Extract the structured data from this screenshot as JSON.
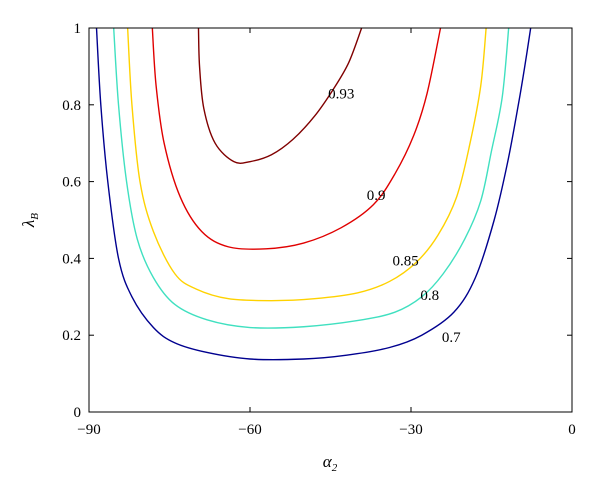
{
  "chart_data": {
    "type": "line",
    "subtype": "contour",
    "title": "",
    "xlabel": {
      "main": "α",
      "sub": "2"
    },
    "ylabel": {
      "main": "λ",
      "sub": "B"
    },
    "xlim": [
      -90,
      0
    ],
    "ylim": [
      0,
      1
    ],
    "x_ticks": [
      -90,
      -60,
      -30,
      0
    ],
    "y_ticks": [
      0,
      0.2,
      0.4,
      0.6,
      0.8,
      1
    ],
    "x_tick_labels": [
      "−90",
      "−60",
      "−30",
      "0"
    ],
    "y_tick_labels": [
      "0",
      "0.2",
      "0.4",
      "0.6",
      "0.8",
      "1"
    ],
    "grid": false,
    "series": [
      {
        "level": "0.7",
        "color": "#00008f",
        "points": [
          [
            -88.6,
            1.0
          ],
          [
            -87.8,
            0.8
          ],
          [
            -86.5,
            0.6
          ],
          [
            -84.5,
            0.4
          ],
          [
            -82,
            0.3
          ],
          [
            -78,
            0.22
          ],
          [
            -74,
            0.18
          ],
          [
            -68,
            0.155
          ],
          [
            -60,
            0.138
          ],
          [
            -50,
            0.138
          ],
          [
            -42,
            0.148
          ],
          [
            -34,
            0.168
          ],
          [
            -28,
            0.2
          ],
          [
            -22,
            0.26
          ],
          [
            -18,
            0.35
          ],
          [
            -14.5,
            0.5
          ],
          [
            -12,
            0.65
          ],
          [
            -10,
            0.8
          ],
          [
            -8.8,
            0.9
          ],
          [
            -7.7,
            1.0
          ]
        ]
      },
      {
        "level": "0.8",
        "color": "#40e0c0",
        "points": [
          [
            -85.4,
            1.0
          ],
          [
            -84.5,
            0.8
          ],
          [
            -83,
            0.6
          ],
          [
            -81,
            0.45
          ],
          [
            -78,
            0.35
          ],
          [
            -74,
            0.28
          ],
          [
            -68,
            0.24
          ],
          [
            -60,
            0.22
          ],
          [
            -50,
            0.222
          ],
          [
            -40,
            0.238
          ],
          [
            -33,
            0.26
          ],
          [
            -28,
            0.3
          ],
          [
            -24,
            0.36
          ],
          [
            -20,
            0.45
          ],
          [
            -17,
            0.55
          ],
          [
            -15,
            0.68
          ],
          [
            -13,
            0.82
          ],
          [
            -11.8,
            1.0
          ]
        ]
      },
      {
        "level": "0.85",
        "color": "#ffd200",
        "points": [
          [
            -82.8,
            1.0
          ],
          [
            -82,
            0.8
          ],
          [
            -80.5,
            0.6
          ],
          [
            -78,
            0.47
          ],
          [
            -74,
            0.36
          ],
          [
            -70,
            0.32
          ],
          [
            -64,
            0.295
          ],
          [
            -56,
            0.29
          ],
          [
            -48,
            0.295
          ],
          [
            -40,
            0.31
          ],
          [
            -34,
            0.34
          ],
          [
            -29,
            0.39
          ],
          [
            -25,
            0.46
          ],
          [
            -21.5,
            0.56
          ],
          [
            -19,
            0.7
          ],
          [
            -17,
            0.85
          ],
          [
            -16,
            1.0
          ]
        ]
      },
      {
        "level": "0.9",
        "color": "#e00000",
        "points": [
          [
            -78.2,
            1.0
          ],
          [
            -77.5,
            0.85
          ],
          [
            -76,
            0.7
          ],
          [
            -73,
            0.56
          ],
          [
            -69,
            0.47
          ],
          [
            -64,
            0.43
          ],
          [
            -57,
            0.425
          ],
          [
            -50,
            0.44
          ],
          [
            -43,
            0.48
          ],
          [
            -37,
            0.54
          ],
          [
            -33,
            0.62
          ],
          [
            -29.5,
            0.72
          ],
          [
            -27,
            0.83
          ],
          [
            -24.5,
            1.0
          ]
        ]
      },
      {
        "level": "0.93",
        "color": "#800000",
        "points": [
          [
            -69.6,
            1.0
          ],
          [
            -69.4,
            0.9
          ],
          [
            -68.6,
            0.79
          ],
          [
            -66.5,
            0.7
          ],
          [
            -63,
            0.652
          ],
          [
            -60,
            0.652
          ],
          [
            -56,
            0.67
          ],
          [
            -52,
            0.71
          ],
          [
            -48,
            0.77
          ],
          [
            -44.5,
            0.84
          ],
          [
            -41.6,
            0.91
          ],
          [
            -39.2,
            1.0
          ]
        ]
      }
    ],
    "contour_labels": [
      {
        "text": "0.93",
        "x": -43,
        "y": 0.83
      },
      {
        "text": "0.9",
        "x": -36.5,
        "y": 0.565
      },
      {
        "text": "0.85",
        "x": -31,
        "y": 0.395
      },
      {
        "text": "0.8",
        "x": -26.5,
        "y": 0.305
      },
      {
        "text": "0.7",
        "x": -22.5,
        "y": 0.195
      }
    ]
  }
}
